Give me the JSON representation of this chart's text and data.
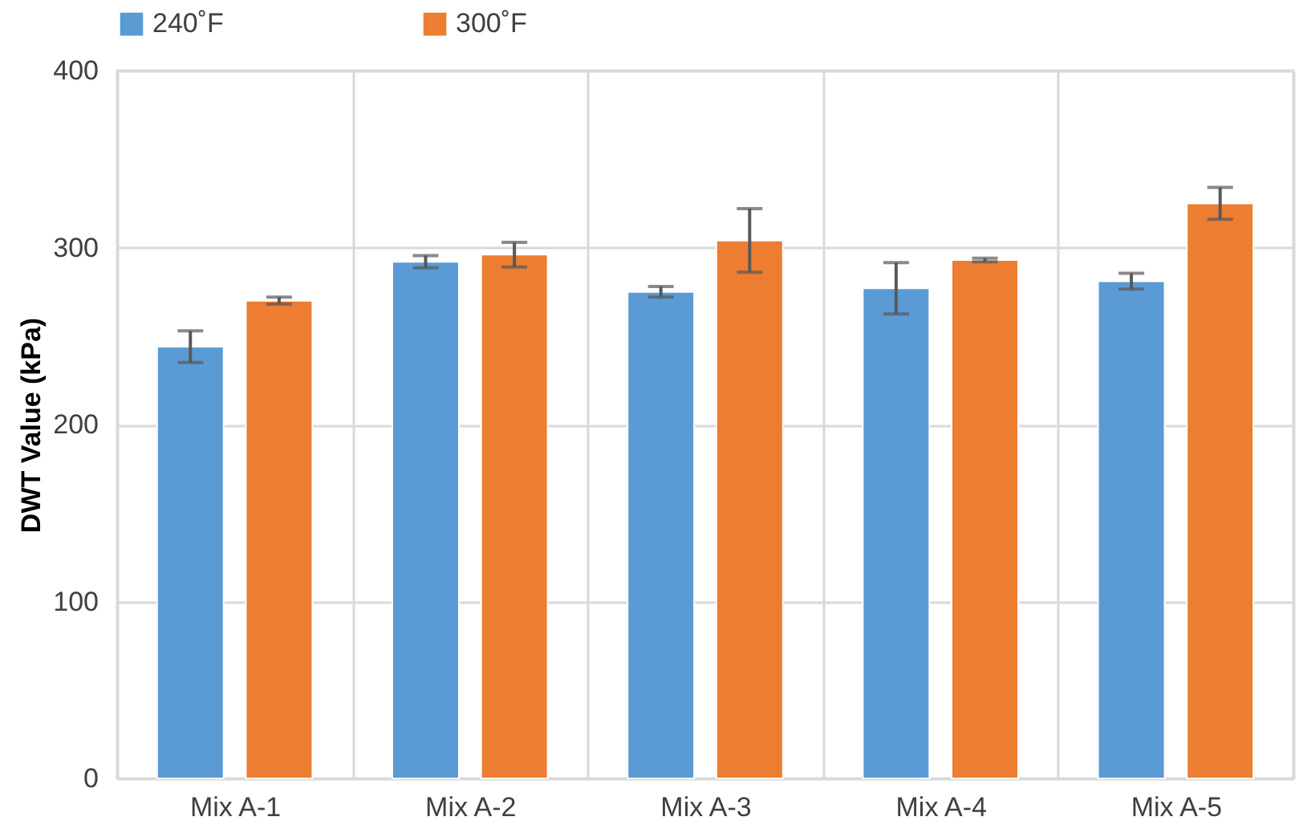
{
  "chart_data": {
    "type": "bar",
    "ylabel": "DWT Value (kPa)",
    "categories": [
      "Mix A-1",
      "Mix A-2",
      "Mix A-3",
      "Mix A-4",
      "Mix A-5"
    ],
    "series": [
      {
        "name": "240˚F",
        "color": "#5b9bd5",
        "values": [
          244,
          292,
          275,
          277,
          281
        ],
        "errors": [
          9,
          3.5,
          3,
          14.5,
          4.5
        ]
      },
      {
        "name": "300˚F",
        "color": "#ed7d31",
        "values": [
          270,
          296,
          304,
          293,
          325
        ],
        "errors": [
          2,
          7,
          18,
          1,
          9
        ]
      }
    ],
    "ylim": [
      0,
      400
    ],
    "yticks": [
      0,
      100,
      200,
      300,
      400
    ],
    "grid": true,
    "legend": "top"
  }
}
